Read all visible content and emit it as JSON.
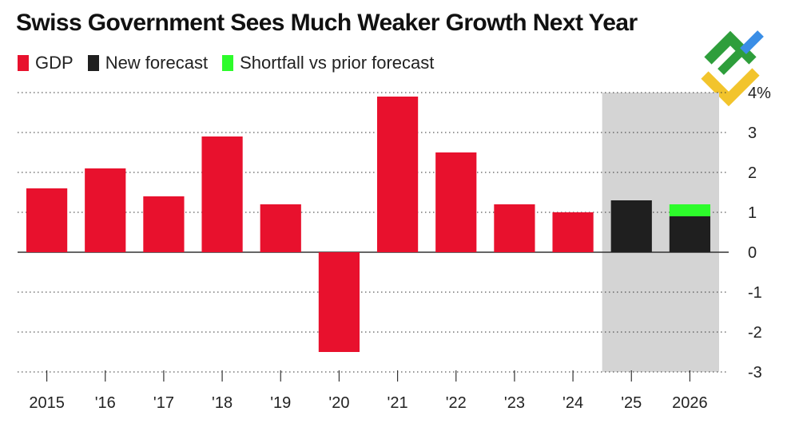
{
  "title": "Swiss Government Sees Much Weaker Growth Next Year",
  "legend": [
    {
      "label": "GDP",
      "color": "#e8112d"
    },
    {
      "label": "New forecast",
      "color": "#1f1f1f"
    },
    {
      "label": "Shortfall vs prior forecast",
      "color": "#2dfc2b"
    }
  ],
  "logo": {
    "icon": "brand-logo-icon",
    "colors": [
      "#2e9e3b",
      "#3a8ee6",
      "#f2c42c"
    ]
  },
  "chart_data": {
    "type": "bar",
    "title": "Swiss Government Sees Much Weaker Growth Next Year",
    "categories": [
      "2015",
      "'16",
      "'17",
      "'18",
      "'19",
      "'20",
      "'21",
      "'22",
      "'23",
      "'24",
      "'25",
      "2026"
    ],
    "series": [
      {
        "name": "GDP",
        "color": "#e8112d",
        "values": [
          1.6,
          2.1,
          1.4,
          2.9,
          1.2,
          -2.5,
          3.9,
          2.5,
          1.2,
          1.0,
          null,
          null
        ]
      },
      {
        "name": "New forecast",
        "color": "#1f1f1f",
        "values": [
          null,
          null,
          null,
          null,
          null,
          null,
          null,
          null,
          null,
          null,
          1.3,
          0.9
        ]
      },
      {
        "name": "Shortfall vs prior forecast",
        "color": "#2dfc2b",
        "stacked_on": "New forecast",
        "values": [
          null,
          null,
          null,
          null,
          null,
          null,
          null,
          null,
          null,
          null,
          null,
          0.3
        ]
      }
    ],
    "y_ticks": [
      -3,
      -2,
      -1,
      0,
      1,
      2,
      3,
      4
    ],
    "y_tick_labels": [
      "-3",
      "-2",
      "-1",
      "0",
      "1",
      "2",
      "3",
      "4%"
    ],
    "ylim": [
      -3,
      4
    ],
    "forecast_shading": {
      "from": "'25",
      "to": "2026",
      "color": "#d4d4d4"
    },
    "grid": true,
    "xlabel": "",
    "ylabel": ""
  }
}
